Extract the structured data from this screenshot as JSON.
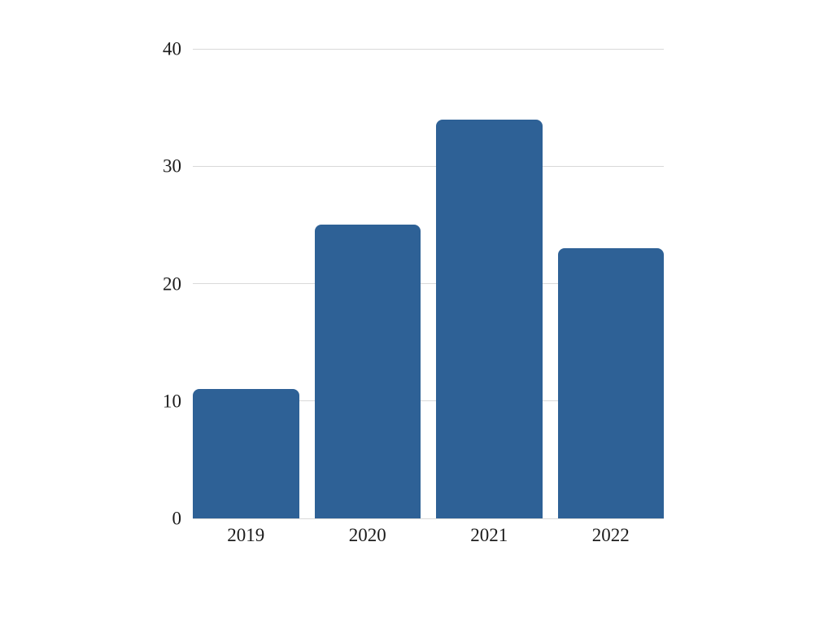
{
  "chart_data": {
    "type": "bar",
    "title": "",
    "categories": [
      "2019",
      "2020",
      "2021",
      "2022"
    ],
    "values": [
      11,
      25,
      34,
      23
    ],
    "xlabel": "",
    "ylabel": "",
    "ylim": [
      0,
      40
    ],
    "yticks": [
      0,
      10,
      20,
      30,
      40
    ],
    "ytick_labels": [
      "0",
      "10",
      "20",
      "30",
      "40"
    ],
    "grid": true,
    "legend_position": "none",
    "colors": {
      "bar": "#2e6196",
      "gridline": "#d9d9d9",
      "tick_label": "#1c1c1c",
      "background": "#ffffff"
    }
  }
}
